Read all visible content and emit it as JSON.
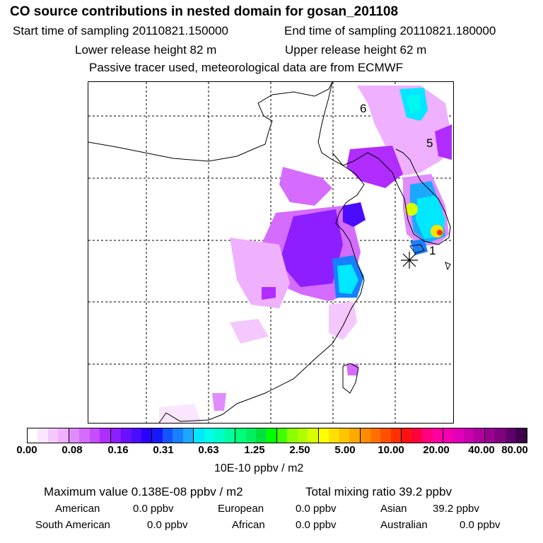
{
  "header": {
    "title": "CO  source contributions in nested domain for gosan_201108",
    "start_label": "Start time of sampling 20110821.150000",
    "end_label": "End time of sampling 20110821.180000",
    "lower_release": "Lower release height   82 m",
    "upper_release": "Upper release height   62 m",
    "tracer_note": "Passive tracer used, meteorological data are from ECMWF"
  },
  "map": {
    "labels": [
      "6",
      "5",
      "1"
    ],
    "receptor_marker": "asterisk"
  },
  "colorbar": {
    "ticks": [
      "0.00",
      "0.08",
      "0.16",
      "0.31",
      "0.63",
      "1.25",
      "2.50",
      "5.00",
      "10.00",
      "20.00",
      "40.00",
      "80.00"
    ],
    "colors": [
      "#ffffff",
      "#fbe6ff",
      "#f4c8ff",
      "#eeb0ff",
      "#e08cff",
      "#d56cff",
      "#c64cff",
      "#b02cff",
      "#8c1eff",
      "#6a10ff",
      "#4a0cff",
      "#2a00ff",
      "#1818ff",
      "#1454ff",
      "#1880ff",
      "#1ca8ff",
      "#00e8ff",
      "#00ffe6",
      "#00ffc8",
      "#00ffa0",
      "#00ff78",
      "#00f060",
      "#00e040",
      "#00ff00",
      "#40ff00",
      "#8cff00",
      "#b0ff00",
      "#d8ff00",
      "#ffff00",
      "#ffe000",
      "#ffc400",
      "#ffa800",
      "#ff8c00",
      "#ff7000",
      "#ff5000",
      "#ff3000",
      "#ff1010",
      "#ff0040",
      "#ff0080",
      "#ff00a0",
      "#f000b0",
      "#e000b8",
      "#c800b0",
      "#b000a0",
      "#980090",
      "#800080",
      "#60006a",
      "#400050"
    ],
    "units": "10E-10 ppbv / m2"
  },
  "summary": {
    "max_value": "Maximum value  0.138E-08 ppbv / m2",
    "total_mixing": "Total mixing ratio       39.2 ppbv",
    "american": "American",
    "american_val": "0.0 ppbv",
    "european": "European",
    "european_val": "0.0 ppbv",
    "asian": "Asian",
    "asian_val": "39.2 ppbv",
    "south_american": "South American",
    "south_american_val": "0.0 ppbv",
    "african": "African",
    "african_val": "0.0 ppbv",
    "australian": "Australian",
    "australian_val": "0.0 ppbv"
  }
}
